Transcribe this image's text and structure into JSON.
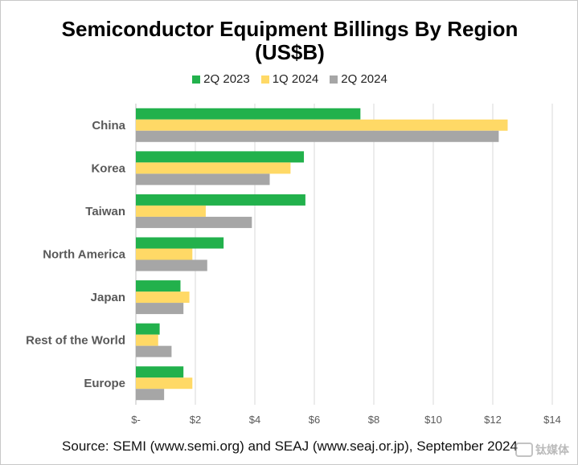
{
  "chart_data": {
    "type": "bar",
    "orientation": "horizontal",
    "title": "Semiconductor Equipment Billings By Region",
    "subtitle": "(US$B)",
    "categories": [
      "China",
      "Korea",
      "Taiwan",
      "North America",
      "Japan",
      "Rest of the World",
      "Europe"
    ],
    "series": [
      {
        "name": "2Q 2023",
        "color": "#22b14c",
        "values": [
          7.55,
          5.65,
          5.7,
          2.95,
          1.5,
          0.8,
          1.6
        ]
      },
      {
        "name": "1Q 2024",
        "color": "#ffd966",
        "values": [
          12.5,
          5.2,
          2.35,
          1.9,
          1.8,
          0.75,
          1.9
        ]
      },
      {
        "name": "2Q 2024",
        "color": "#a6a6a6",
        "values": [
          12.2,
          4.5,
          3.9,
          2.4,
          1.6,
          1.2,
          0.95
        ]
      }
    ],
    "xlim": [
      0,
      14
    ],
    "xticks": [
      0,
      2,
      4,
      6,
      8,
      10,
      12,
      14
    ],
    "xtick_labels": [
      "$-",
      "$2",
      "$4",
      "$6",
      "$8",
      "$10",
      "$12",
      "$14"
    ],
    "grid": true,
    "legend_position": "top-center",
    "source": "Source: SEMI (www.semi.org) and SEAJ (www.seaj.or.jp), September 2024"
  },
  "watermark": {
    "text": "钛媒体"
  },
  "colors": {
    "axis_label": "#595959",
    "grid": "#d9d9d9"
  }
}
